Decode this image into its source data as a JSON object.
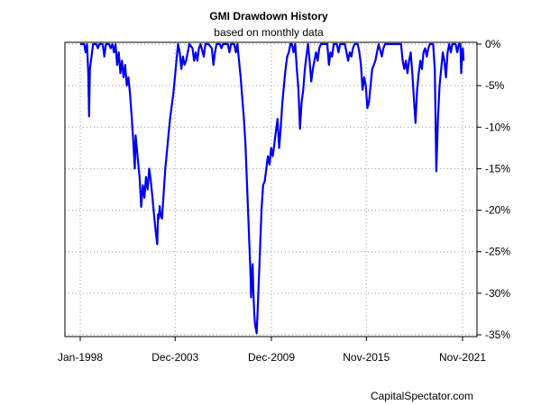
{
  "chart_data": {
    "type": "line",
    "title": "GMI Drawdown History",
    "subtitle": "based on monthly data",
    "source": "CapitalSpectator.com",
    "x_tick_labels": [
      "Jan-1998",
      "Dec-2003",
      "Dec-2009",
      "Nov-2015",
      "Nov-2021"
    ],
    "x_tick_dates": [
      1998.0,
      2003.917,
      2009.917,
      2015.833,
      2021.833
    ],
    "y_tick_labels": [
      "0%",
      "-5%",
      "-10%",
      "-15%",
      "-20%",
      "-25%",
      "-30%",
      "-35%"
    ],
    "y_tick_values": [
      0,
      -5,
      -10,
      -15,
      -20,
      -25,
      -30,
      -35
    ],
    "xlim": [
      1998.0,
      2021.917
    ],
    "ylim": [
      -35,
      0
    ],
    "grid": true,
    "y_axis_side": "right",
    "series": [
      {
        "color": "#0000ee",
        "points": [
          [
            1998.0,
            0
          ],
          [
            1998.25,
            0
          ],
          [
            1998.33,
            -1.0
          ],
          [
            1998.42,
            0
          ],
          [
            1998.5,
            -3.5
          ],
          [
            1998.55,
            -8.7
          ],
          [
            1998.6,
            -3.0
          ],
          [
            1998.7,
            -1.5
          ],
          [
            1998.8,
            0
          ],
          [
            1999.0,
            0
          ],
          [
            1999.1,
            -0.5
          ],
          [
            1999.2,
            0
          ],
          [
            1999.4,
            0
          ],
          [
            1999.5,
            -1.5
          ],
          [
            1999.6,
            0
          ],
          [
            1999.8,
            0
          ],
          [
            1999.9,
            -0.5
          ],
          [
            2000.0,
            0
          ],
          [
            2000.1,
            -1.0
          ],
          [
            2000.2,
            0
          ],
          [
            2000.3,
            -2.5
          ],
          [
            2000.4,
            -1.0
          ],
          [
            2000.5,
            -3.5
          ],
          [
            2000.6,
            -2.0
          ],
          [
            2000.7,
            -4.0
          ],
          [
            2000.8,
            -2.5
          ],
          [
            2000.9,
            -5.0
          ],
          [
            2001.0,
            -4.0
          ],
          [
            2001.1,
            -6.0
          ],
          [
            2001.2,
            -8.5
          ],
          [
            2001.3,
            -11.5
          ],
          [
            2001.4,
            -15.0
          ],
          [
            2001.45,
            -11.0
          ],
          [
            2001.5,
            -12.0
          ],
          [
            2001.6,
            -14.0
          ],
          [
            2001.7,
            -16.0
          ],
          [
            2001.8,
            -19.6
          ],
          [
            2001.9,
            -17.0
          ],
          [
            2002.0,
            -18.5
          ],
          [
            2002.1,
            -16.0
          ],
          [
            2002.2,
            -17.5
          ],
          [
            2002.3,
            -15.0
          ],
          [
            2002.4,
            -16.5
          ],
          [
            2002.5,
            -18.5
          ],
          [
            2002.6,
            -20.5
          ],
          [
            2002.7,
            -22.5
          ],
          [
            2002.8,
            -24.1
          ],
          [
            2002.85,
            -20.5
          ],
          [
            2002.9,
            -21.0
          ],
          [
            2002.95,
            -19.5
          ],
          [
            2003.0,
            -20.5
          ],
          [
            2003.1,
            -21.0
          ],
          [
            2003.2,
            -18.0
          ],
          [
            2003.3,
            -15.0
          ],
          [
            2003.4,
            -13.0
          ],
          [
            2003.5,
            -11.0
          ],
          [
            2003.6,
            -9.0
          ],
          [
            2003.7,
            -7.5
          ],
          [
            2003.8,
            -6.0
          ],
          [
            2003.9,
            -4.0
          ],
          [
            2004.0,
            -2.0
          ],
          [
            2004.1,
            0
          ],
          [
            2004.2,
            -1.0
          ],
          [
            2004.3,
            -3.0
          ],
          [
            2004.4,
            -1.5
          ],
          [
            2004.5,
            -2.5
          ],
          [
            2004.6,
            -2.0
          ],
          [
            2004.7,
            -1.0
          ],
          [
            2004.8,
            0
          ],
          [
            2005.0,
            -0.5
          ],
          [
            2005.1,
            -2.0
          ],
          [
            2005.2,
            -1.0
          ],
          [
            2005.3,
            -2.0
          ],
          [
            2005.4,
            -0.5
          ],
          [
            2005.5,
            0
          ],
          [
            2005.7,
            -1.5
          ],
          [
            2005.8,
            0
          ],
          [
            2006.0,
            0
          ],
          [
            2006.2,
            -0.5
          ],
          [
            2006.3,
            -2.5
          ],
          [
            2006.4,
            -1.0
          ],
          [
            2006.5,
            0
          ],
          [
            2006.7,
            0
          ],
          [
            2006.8,
            -0.5
          ],
          [
            2006.9,
            0
          ],
          [
            2007.2,
            0
          ],
          [
            2007.3,
            -1.0
          ],
          [
            2007.4,
            0
          ],
          [
            2007.6,
            0
          ],
          [
            2007.7,
            -1.0
          ],
          [
            2007.8,
            0
          ],
          [
            2007.9,
            -2.0
          ],
          [
            2008.0,
            -4.0
          ],
          [
            2008.1,
            -6.5
          ],
          [
            2008.2,
            -9.0
          ],
          [
            2008.3,
            -12.0
          ],
          [
            2008.4,
            -17.0
          ],
          [
            2008.5,
            -22.0
          ],
          [
            2008.6,
            -27.0
          ],
          [
            2008.65,
            -30.5
          ],
          [
            2008.7,
            -28.0
          ],
          [
            2008.75,
            -26.5
          ],
          [
            2008.8,
            -30.0
          ],
          [
            2008.85,
            -32.5
          ],
          [
            2008.9,
            -33.8
          ],
          [
            2009.0,
            -34.8
          ],
          [
            2009.1,
            -30.0
          ],
          [
            2009.2,
            -25.0
          ],
          [
            2009.3,
            -20.0
          ],
          [
            2009.4,
            -17.0
          ],
          [
            2009.5,
            -16.5
          ],
          [
            2009.6,
            -15.0
          ],
          [
            2009.7,
            -13.5
          ],
          [
            2009.8,
            -14.5
          ],
          [
            2009.9,
            -12.5
          ],
          [
            2010.0,
            -13.5
          ],
          [
            2010.1,
            -12.0
          ],
          [
            2010.2,
            -10.5
          ],
          [
            2010.3,
            -9.0
          ],
          [
            2010.4,
            -12.5
          ],
          [
            2010.5,
            -10.0
          ],
          [
            2010.6,
            -7.0
          ],
          [
            2010.7,
            -5.0
          ],
          [
            2010.8,
            -3.0
          ],
          [
            2010.9,
            -1.5
          ],
          [
            2011.0,
            -1.0
          ],
          [
            2011.1,
            0
          ],
          [
            2011.2,
            0
          ],
          [
            2011.3,
            -1.0
          ],
          [
            2011.4,
            0
          ],
          [
            2011.5,
            -3.0
          ],
          [
            2011.6,
            -5.5
          ],
          [
            2011.7,
            -10.2
          ],
          [
            2011.8,
            -7.0
          ],
          [
            2011.9,
            -5.5
          ],
          [
            2012.0,
            -3.0
          ],
          [
            2012.1,
            -1.5
          ],
          [
            2012.2,
            0
          ],
          [
            2012.3,
            -2.0
          ],
          [
            2012.4,
            -4.5
          ],
          [
            2012.5,
            -3.0
          ],
          [
            2012.6,
            -2.0
          ],
          [
            2012.7,
            -1.0
          ],
          [
            2012.8,
            -2.0
          ],
          [
            2012.9,
            -0.5
          ],
          [
            2013.0,
            0
          ],
          [
            2013.4,
            0
          ],
          [
            2013.5,
            -2.5
          ],
          [
            2013.6,
            -1.0
          ],
          [
            2013.7,
            -1.5
          ],
          [
            2013.8,
            0
          ],
          [
            2014.0,
            0
          ],
          [
            2014.1,
            -1.0
          ],
          [
            2014.2,
            0
          ],
          [
            2014.5,
            0
          ],
          [
            2014.6,
            -1.0
          ],
          [
            2014.7,
            -2.0
          ],
          [
            2014.8,
            -1.0
          ],
          [
            2014.9,
            -1.5
          ],
          [
            2015.0,
            -0.5
          ],
          [
            2015.1,
            0
          ],
          [
            2015.3,
            0
          ],
          [
            2015.4,
            -1.0
          ],
          [
            2015.5,
            -2.5
          ],
          [
            2015.6,
            -5.5
          ],
          [
            2015.7,
            -4.0
          ],
          [
            2015.8,
            -5.0
          ],
          [
            2015.9,
            -7.7
          ],
          [
            2016.0,
            -7.0
          ],
          [
            2016.1,
            -5.0
          ],
          [
            2016.2,
            -3.0
          ],
          [
            2016.3,
            -2.5
          ],
          [
            2016.4,
            -2.0
          ],
          [
            2016.5,
            -1.0
          ],
          [
            2016.6,
            0
          ],
          [
            2016.8,
            -1.5
          ],
          [
            2016.9,
            -0.5
          ],
          [
            2017.0,
            0
          ],
          [
            2017.6,
            0
          ],
          [
            2017.7,
            0
          ],
          [
            2018.0,
            0
          ],
          [
            2018.1,
            -2.0
          ],
          [
            2018.2,
            -3.0
          ],
          [
            2018.3,
            -2.0
          ],
          [
            2018.4,
            -3.5
          ],
          [
            2018.5,
            -2.0
          ],
          [
            2018.6,
            -1.0
          ],
          [
            2018.7,
            -3.5
          ],
          [
            2018.8,
            -6.5
          ],
          [
            2018.9,
            -9.5
          ],
          [
            2019.0,
            -5.5
          ],
          [
            2019.1,
            -3.5
          ],
          [
            2019.2,
            -2.0
          ],
          [
            2019.3,
            -3.0
          ],
          [
            2019.4,
            -1.0
          ],
          [
            2019.5,
            -0.5
          ],
          [
            2019.6,
            -1.5
          ],
          [
            2019.7,
            -0.5
          ],
          [
            2019.8,
            0
          ],
          [
            2020.0,
            0
          ],
          [
            2020.1,
            -3.0
          ],
          [
            2020.2,
            -15.3
          ],
          [
            2020.3,
            -9.0
          ],
          [
            2020.4,
            -5.0
          ],
          [
            2020.5,
            -3.0
          ],
          [
            2020.6,
            -1.0
          ],
          [
            2020.7,
            -2.0
          ],
          [
            2020.8,
            -4.0
          ],
          [
            2020.9,
            -1.0
          ],
          [
            2021.0,
            0
          ],
          [
            2021.1,
            -1.0
          ],
          [
            2021.2,
            0
          ],
          [
            2021.4,
            0
          ],
          [
            2021.5,
            -1.0
          ],
          [
            2021.6,
            0
          ],
          [
            2021.7,
            0
          ],
          [
            2021.75,
            -3.5
          ],
          [
            2021.8,
            -1.5
          ],
          [
            2021.85,
            -0.5
          ],
          [
            2021.9,
            -2.0
          ]
        ]
      }
    ]
  }
}
